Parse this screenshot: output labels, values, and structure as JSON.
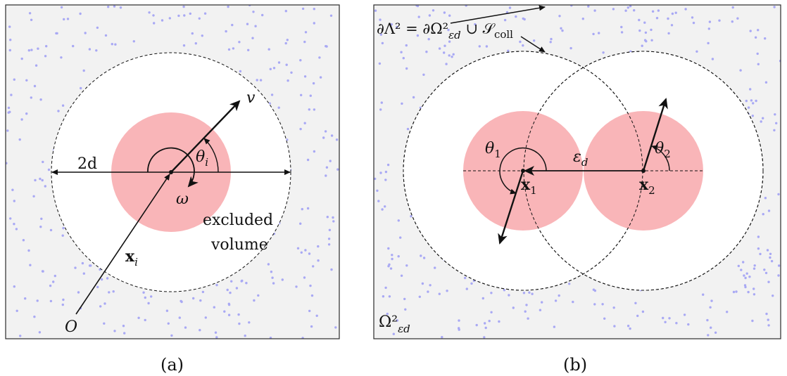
{
  "colors": {
    "background_fill": "#f2f2f2",
    "particle_dots": "#a9a9f4",
    "excluded_disk": "#f9b5b8",
    "lines": "#111111",
    "panel_border": "#2b2b2b"
  },
  "panel_a": {
    "caption": "(a)",
    "label_v": "v",
    "label_2d": "2d",
    "label_theta": "θ",
    "label_theta_sub": "i",
    "label_omega": "ω",
    "label_x": "x",
    "label_x_sub": "i",
    "label_origin": "O",
    "excluded_line1": "excluded",
    "excluded_line2": "volume"
  },
  "panel_b": {
    "caption": "(b)",
    "boundary_eq": "∂Λ² = ∂Ω²",
    "boundary_eq_sub": "εd",
    "boundary_eq_rest": " ∪ 𝒮",
    "boundary_eq_rest_sub": "coll",
    "label_theta1": "θ",
    "label_theta1_sub": "1",
    "label_theta2": "θ",
    "label_theta2_sub": "2",
    "label_eps": "ε",
    "label_eps_sub": "d",
    "label_x1": "x",
    "label_x1_sub": "1",
    "label_x2": "x",
    "label_x2_sub": "2",
    "label_omega_domain": "Ω²",
    "label_omega_domain_sub": "εd"
  }
}
